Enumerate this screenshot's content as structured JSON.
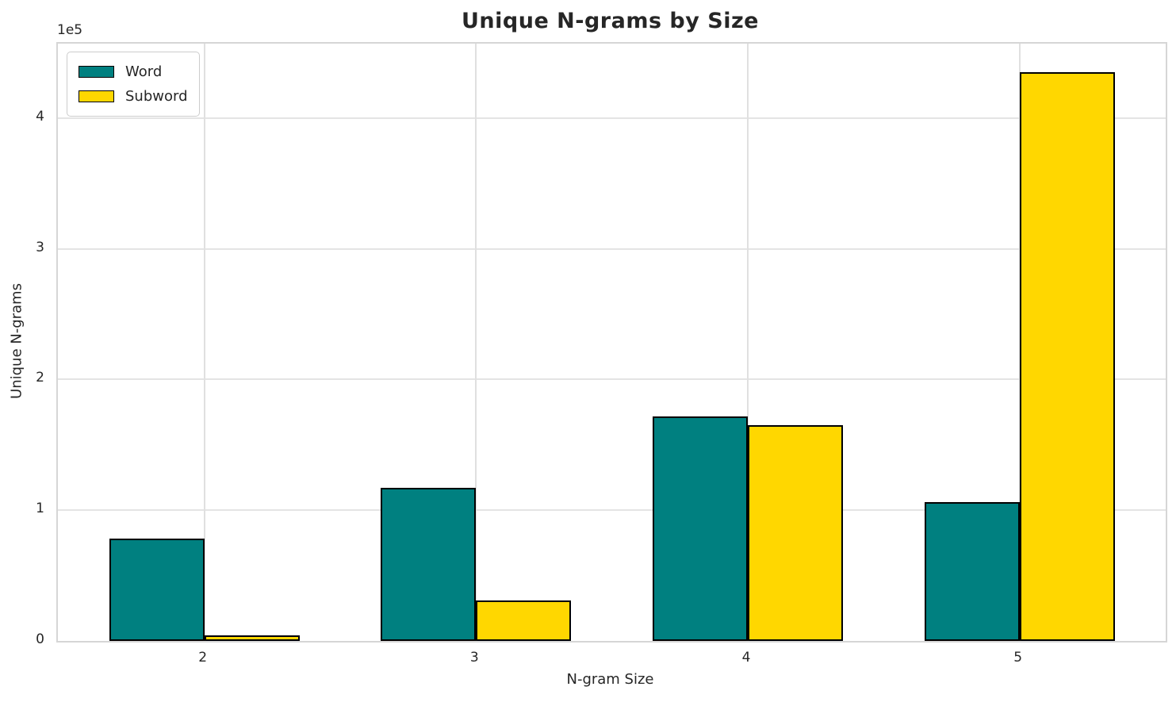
{
  "chart_data": {
    "type": "bar",
    "title": "Unique N-grams by Size",
    "xlabel": "N-gram Size",
    "ylabel": "Unique N-grams",
    "categories": [
      "2",
      "3",
      "4",
      "5"
    ],
    "series": [
      {
        "name": "Word",
        "color": "#008080",
        "values": [
          78000,
          117000,
          171500,
          106000
        ]
      },
      {
        "name": "Subword",
        "color": "#FFD700",
        "values": [
          4500,
          31000,
          165000,
          435000
        ]
      }
    ],
    "bar_edge_color": "#000000",
    "ylim": [
      0,
      457000
    ],
    "yticks": {
      "values": [
        0,
        100000,
        200000,
        300000,
        400000
      ],
      "labels": [
        "0",
        "1",
        "2",
        "3",
        "4"
      ],
      "offset_text": "1e5"
    },
    "grid": true,
    "legend": {
      "position": "upper left",
      "entries": [
        "Word",
        "Subword"
      ]
    }
  }
}
